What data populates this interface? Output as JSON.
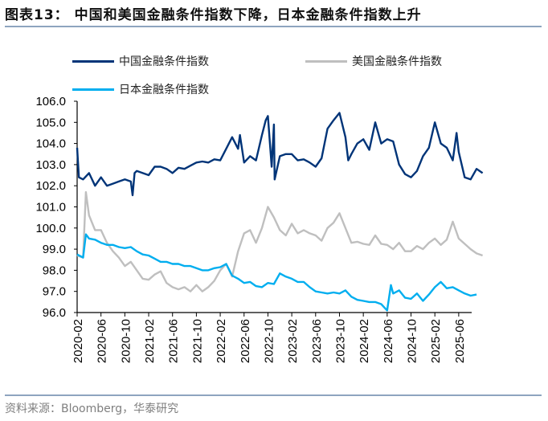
{
  "header": {
    "title": "图表13： 中国和美国金融条件指数下降，日本金融条件指数上升"
  },
  "footer": {
    "source": "资料来源：Bloomberg，华泰研究"
  },
  "chart_data": {
    "type": "line",
    "title": "图表13： 中国和美国金融条件指数下降，日本金融条件指数上升",
    "xlabel": "",
    "ylabel": "",
    "ylim": [
      96.0,
      106.0
    ],
    "xlim": [
      "2020-02",
      "2025-10"
    ],
    "yticks": [
      "96.0",
      "97.0",
      "98.0",
      "99.0",
      "100.0",
      "101.0",
      "102.0",
      "103.0",
      "104.0",
      "105.0",
      "106.0"
    ],
    "xticks": [
      "2020-02",
      "2020-06",
      "2020-10",
      "2021-02",
      "2021-06",
      "2021-10",
      "2022-02",
      "2022-06",
      "2022-10",
      "2023-02",
      "2023-06",
      "2023-10",
      "2024-02",
      "2024-06",
      "2024-10",
      "2025-02",
      "2025-06"
    ],
    "grid": false,
    "legend_position": "top",
    "series": [
      {
        "name": "中国金融条件指数",
        "color": "#003478",
        "points": [
          [
            "2020-02-01",
            103.8
          ],
          [
            "2020-02-10",
            102.4
          ],
          [
            "2020-03",
            102.3
          ],
          [
            "2020-04",
            102.6
          ],
          [
            "2020-05",
            102.0
          ],
          [
            "2020-06",
            102.4
          ],
          [
            "2020-07",
            102.0
          ],
          [
            "2020-08",
            102.1
          ],
          [
            "2020-09",
            102.2
          ],
          [
            "2020-10",
            102.3
          ],
          [
            "2020-11-01",
            102.2
          ],
          [
            "2020-11-10",
            101.55
          ],
          [
            "2020-11-20",
            102.6
          ],
          [
            "2020-12",
            102.7
          ],
          [
            "2021-01",
            102.6
          ],
          [
            "2021-02",
            102.5
          ],
          [
            "2021-03",
            102.9
          ],
          [
            "2021-04",
            102.9
          ],
          [
            "2021-05",
            102.8
          ],
          [
            "2021-06",
            102.6
          ],
          [
            "2021-07",
            102.85
          ],
          [
            "2021-08",
            102.8
          ],
          [
            "2021-09",
            102.95
          ],
          [
            "2021-10",
            103.1
          ],
          [
            "2021-11",
            103.15
          ],
          [
            "2021-12",
            103.1
          ],
          [
            "2022-01",
            103.25
          ],
          [
            "2022-02",
            103.2
          ],
          [
            "2022-03",
            103.75
          ],
          [
            "2022-04",
            104.3
          ],
          [
            "2022-05-01",
            103.75
          ],
          [
            "2022-05-10",
            104.4
          ],
          [
            "2022-06",
            103.1
          ],
          [
            "2022-07",
            103.4
          ],
          [
            "2022-08",
            103.2
          ],
          [
            "2022-09-01",
            104.4
          ],
          [
            "2022-09-20",
            105.1
          ],
          [
            "2022-10-01",
            105.3
          ],
          [
            "2022-10-20",
            102.9
          ],
          [
            "2022-11-01",
            104.9
          ],
          [
            "2022-11-05",
            102.3
          ],
          [
            "2022-12",
            103.4
          ],
          [
            "2023-01",
            103.5
          ],
          [
            "2023-02",
            103.5
          ],
          [
            "2023-03",
            103.2
          ],
          [
            "2023-04",
            103.25
          ],
          [
            "2023-05",
            103.1
          ],
          [
            "2023-06",
            102.9
          ],
          [
            "2023-07",
            103.3
          ],
          [
            "2023-08",
            104.7
          ],
          [
            "2023-09",
            105.1
          ],
          [
            "2023-10",
            105.45
          ],
          [
            "2023-11-01",
            104.3
          ],
          [
            "2023-11-15",
            103.2
          ],
          [
            "2023-12",
            103.5
          ],
          [
            "2024-01",
            104.0
          ],
          [
            "2024-02",
            104.2
          ],
          [
            "2024-03",
            103.7
          ],
          [
            "2024-04",
            105.0
          ],
          [
            "2024-05",
            104.0
          ],
          [
            "2024-06",
            104.2
          ],
          [
            "2024-07",
            104.1
          ],
          [
            "2024-08",
            103.0
          ],
          [
            "2024-09",
            102.55
          ],
          [
            "2024-10",
            102.4
          ],
          [
            "2024-11",
            102.7
          ],
          [
            "2024-12",
            103.4
          ],
          [
            "2025-01",
            103.8
          ],
          [
            "2025-02",
            105.0
          ],
          [
            "2025-03",
            104.0
          ],
          [
            "2025-04",
            103.8
          ],
          [
            "2025-05-01",
            103.2
          ],
          [
            "2025-05-20",
            104.5
          ],
          [
            "2025-06",
            103.6
          ],
          [
            "2025-07",
            102.4
          ],
          [
            "2025-08",
            102.3
          ],
          [
            "2025-09",
            102.8
          ],
          [
            "2025-10",
            102.6
          ]
        ]
      },
      {
        "name": "美国金融条件指数",
        "color": "#bfbfbf",
        "points": [
          [
            "2020-02",
            98.7
          ],
          [
            "2020-03-01",
            98.6
          ],
          [
            "2020-03-15",
            101.7
          ],
          [
            "2020-04",
            100.6
          ],
          [
            "2020-05",
            99.9
          ],
          [
            "2020-06",
            99.9
          ],
          [
            "2020-07",
            99.3
          ],
          [
            "2020-08",
            98.9
          ],
          [
            "2020-09",
            98.6
          ],
          [
            "2020-10",
            98.2
          ],
          [
            "2020-11",
            98.4
          ],
          [
            "2020-12",
            98.0
          ],
          [
            "2021-01",
            97.6
          ],
          [
            "2021-02",
            97.55
          ],
          [
            "2021-03",
            97.8
          ],
          [
            "2021-04",
            97.95
          ],
          [
            "2021-05",
            97.4
          ],
          [
            "2021-06",
            97.2
          ],
          [
            "2021-07",
            97.1
          ],
          [
            "2021-08",
            97.2
          ],
          [
            "2021-09",
            97.0
          ],
          [
            "2021-10",
            97.3
          ],
          [
            "2021-11",
            97.0
          ],
          [
            "2021-12",
            97.2
          ],
          [
            "2022-01",
            97.5
          ],
          [
            "2022-02",
            98.0
          ],
          [
            "2022-03",
            98.3
          ],
          [
            "2022-04",
            97.7
          ],
          [
            "2022-05",
            98.9
          ],
          [
            "2022-06",
            99.75
          ],
          [
            "2022-07",
            99.9
          ],
          [
            "2022-08",
            99.3
          ],
          [
            "2022-09",
            100.0
          ],
          [
            "2022-10",
            101.0
          ],
          [
            "2022-11",
            100.5
          ],
          [
            "2022-12",
            99.9
          ],
          [
            "2023-01",
            99.65
          ],
          [
            "2023-02",
            100.2
          ],
          [
            "2023-03",
            99.75
          ],
          [
            "2023-04",
            99.9
          ],
          [
            "2023-05",
            99.75
          ],
          [
            "2023-06",
            99.65
          ],
          [
            "2023-07",
            99.4
          ],
          [
            "2023-08",
            100.0
          ],
          [
            "2023-09",
            100.25
          ],
          [
            "2023-10",
            100.7
          ],
          [
            "2023-11",
            100.0
          ],
          [
            "2023-12",
            99.3
          ],
          [
            "2024-01",
            99.35
          ],
          [
            "2024-02",
            99.25
          ],
          [
            "2024-03",
            99.2
          ],
          [
            "2024-04",
            99.65
          ],
          [
            "2024-05",
            99.25
          ],
          [
            "2024-06",
            99.2
          ],
          [
            "2024-07",
            99.0
          ],
          [
            "2024-08",
            99.3
          ],
          [
            "2024-09",
            98.9
          ],
          [
            "2024-10",
            98.9
          ],
          [
            "2024-11",
            99.15
          ],
          [
            "2024-12",
            99.0
          ],
          [
            "2025-01",
            99.3
          ],
          [
            "2025-02",
            99.5
          ],
          [
            "2025-03",
            99.2
          ],
          [
            "2025-04",
            99.45
          ],
          [
            "2025-05",
            100.3
          ],
          [
            "2025-06",
            99.5
          ],
          [
            "2025-07",
            99.25
          ],
          [
            "2025-08",
            99.0
          ],
          [
            "2025-09",
            98.8
          ],
          [
            "2025-10",
            98.7
          ]
        ]
      },
      {
        "name": "日本金融条件指数",
        "color": "#00aeef",
        "points": [
          [
            "2020-02",
            98.75
          ],
          [
            "2020-03-01",
            98.6
          ],
          [
            "2020-03-15",
            99.7
          ],
          [
            "2020-04",
            99.5
          ],
          [
            "2020-05",
            99.45
          ],
          [
            "2020-06",
            99.3
          ],
          [
            "2020-07",
            99.2
          ],
          [
            "2020-08",
            99.2
          ],
          [
            "2020-09",
            99.1
          ],
          [
            "2020-10",
            99.05
          ],
          [
            "2020-11",
            99.1
          ],
          [
            "2020-12",
            98.9
          ],
          [
            "2021-01",
            98.75
          ],
          [
            "2021-02",
            98.7
          ],
          [
            "2021-03",
            98.55
          ],
          [
            "2021-04",
            98.4
          ],
          [
            "2021-05",
            98.4
          ],
          [
            "2021-06",
            98.3
          ],
          [
            "2021-07",
            98.3
          ],
          [
            "2021-08",
            98.2
          ],
          [
            "2021-09",
            98.2
          ],
          [
            "2021-10",
            98.1
          ],
          [
            "2021-11",
            98.0
          ],
          [
            "2021-12",
            98.0
          ],
          [
            "2022-01",
            98.1
          ],
          [
            "2022-02",
            98.15
          ],
          [
            "2022-03",
            98.3
          ],
          [
            "2022-04",
            97.75
          ],
          [
            "2022-05",
            97.6
          ],
          [
            "2022-06",
            97.4
          ],
          [
            "2022-07",
            97.45
          ],
          [
            "2022-08",
            97.25
          ],
          [
            "2022-09",
            97.2
          ],
          [
            "2022-10",
            97.4
          ],
          [
            "2022-11",
            97.35
          ],
          [
            "2022-12",
            97.85
          ],
          [
            "2023-01",
            97.7
          ],
          [
            "2023-02",
            97.6
          ],
          [
            "2023-03",
            97.45
          ],
          [
            "2023-04",
            97.45
          ],
          [
            "2023-05",
            97.2
          ],
          [
            "2023-06",
            97.0
          ],
          [
            "2023-07",
            96.95
          ],
          [
            "2023-08",
            96.9
          ],
          [
            "2023-09",
            96.95
          ],
          [
            "2023-10",
            96.9
          ],
          [
            "2023-11",
            97.05
          ],
          [
            "2023-12",
            96.75
          ],
          [
            "2024-01",
            96.6
          ],
          [
            "2024-02",
            96.55
          ],
          [
            "2024-03",
            96.5
          ],
          [
            "2024-04",
            96.5
          ],
          [
            "2024-05",
            96.4
          ],
          [
            "2024-06",
            96.1
          ],
          [
            "2024-06-20",
            97.3
          ],
          [
            "2024-07",
            96.9
          ],
          [
            "2024-08",
            97.05
          ],
          [
            "2024-09",
            96.7
          ],
          [
            "2024-10",
            96.65
          ],
          [
            "2024-11",
            96.9
          ],
          [
            "2024-12",
            96.55
          ],
          [
            "2025-01",
            96.85
          ],
          [
            "2025-02",
            97.2
          ],
          [
            "2025-03",
            97.45
          ],
          [
            "2025-04",
            97.15
          ],
          [
            "2025-05",
            97.2
          ],
          [
            "2025-06",
            97.05
          ],
          [
            "2025-07",
            96.9
          ],
          [
            "2025-08",
            96.8
          ],
          [
            "2025-09",
            96.85
          ]
        ]
      }
    ]
  }
}
